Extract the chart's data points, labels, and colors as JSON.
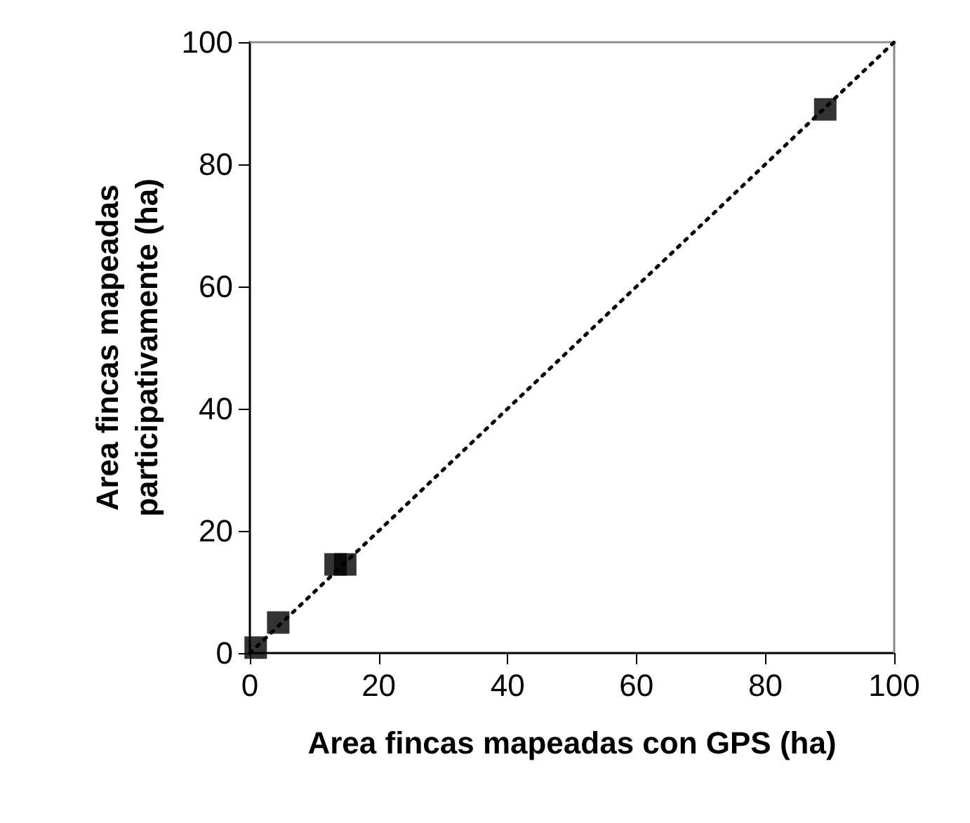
{
  "chart_data": {
    "type": "scatter",
    "xlabel": "Area fincas mapeadas con GPS (ha)",
    "ylabel": "Area fincas mapeadas\nparticipativamente (ha)",
    "marker": "square",
    "grid": false,
    "series": [
      {
        "color": "#000000",
        "x": [
          0.9,
          4.4,
          13.3,
          14.8,
          89.3
        ],
        "values": [
          0.9,
          5,
          14.5,
          14.5,
          89
        ]
      },
      {
        "type": "line",
        "color": "#000000",
        "line_style": "dotted",
        "marker": "none",
        "x": [
          0,
          100
        ],
        "values": [
          0,
          100
        ]
      }
    ],
    "xlim": [
      0,
      100
    ],
    "xticks": [
      0,
      20,
      40,
      60,
      80,
      100
    ],
    "ylim": [
      0,
      100
    ],
    "yticks": [
      0,
      20,
      40,
      60,
      80,
      100
    ]
  }
}
